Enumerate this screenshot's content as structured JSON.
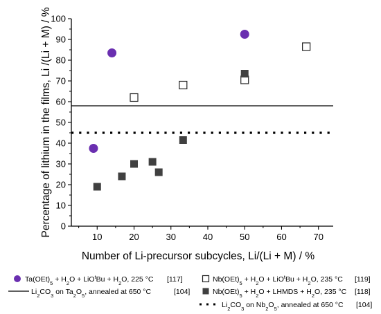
{
  "chart_data": {
    "type": "scatter",
    "xlabel": "Number of Li-precursor subcycles, Li/(Li + M) / %",
    "ylabel": "Percentage of lithium in the films, Li /(Li + M) / %",
    "xlim": [
      3,
      74
    ],
    "ylim": [
      0,
      100
    ],
    "x_ticks": [
      "10",
      "20",
      "30",
      "40",
      "50",
      "60",
      "70"
    ],
    "y_ticks": [
      "0",
      "10",
      "20",
      "30",
      "40",
      "50",
      "60",
      "70",
      "80",
      "90",
      "100"
    ],
    "grid": false,
    "series": [
      {
        "name_parts": [
          "Ta(OEt)",
          "5",
          " + H",
          "2",
          "O + LiO",
          "t",
          "Bu + H",
          "2",
          "O, 225 °C"
        ],
        "ref": "[117]",
        "marker": "circle",
        "color": "#6a2fb0",
        "points": [
          [
            9,
            37.5
          ],
          [
            14,
            83.5
          ],
          [
            50,
            92.5
          ]
        ]
      },
      {
        "name_parts": [
          "Nb(OEt)",
          "5",
          " + H",
          "2",
          "O + LiO",
          "t",
          "Bu + H",
          "2",
          "O, 235 °C"
        ],
        "ref": "[119]",
        "marker": "open-square",
        "color": "#222222",
        "points": [
          [
            20,
            62
          ],
          [
            33.3,
            68
          ],
          [
            50,
            70.5
          ],
          [
            66.7,
            86.5
          ]
        ]
      },
      {
        "name_parts": [
          "Nb(OEt)",
          "5",
          " + H",
          "2",
          "O + LHMDS + H",
          "2",
          "O, 235 °C"
        ],
        "ref": "[118]",
        "marker": "filled-square",
        "color": "#404040",
        "points": [
          [
            10,
            19
          ],
          [
            16.7,
            24
          ],
          [
            20,
            30
          ],
          [
            25,
            31
          ],
          [
            26.7,
            26
          ],
          [
            33.3,
            41.5
          ],
          [
            50,
            73.5
          ]
        ]
      }
    ],
    "reference_lines": [
      {
        "name_parts": [
          "Li",
          "2",
          "CO",
          "3",
          " on Ta",
          "2",
          "O",
          "5",
          ", annealed at 650 °C"
        ],
        "ref": "[104]",
        "style": "solid",
        "y": 58
      },
      {
        "name_parts": [
          "Li",
          "2",
          "CO",
          "3",
          " on Nb",
          "2",
          "O",
          "5",
          ", annealed at 650 °C"
        ],
        "ref": "[104]",
        "style": "dotted",
        "y": 45
      }
    ],
    "colors": {
      "axis": "#000000",
      "purple": "#6a2fb0",
      "dark_square": "#404040"
    }
  }
}
